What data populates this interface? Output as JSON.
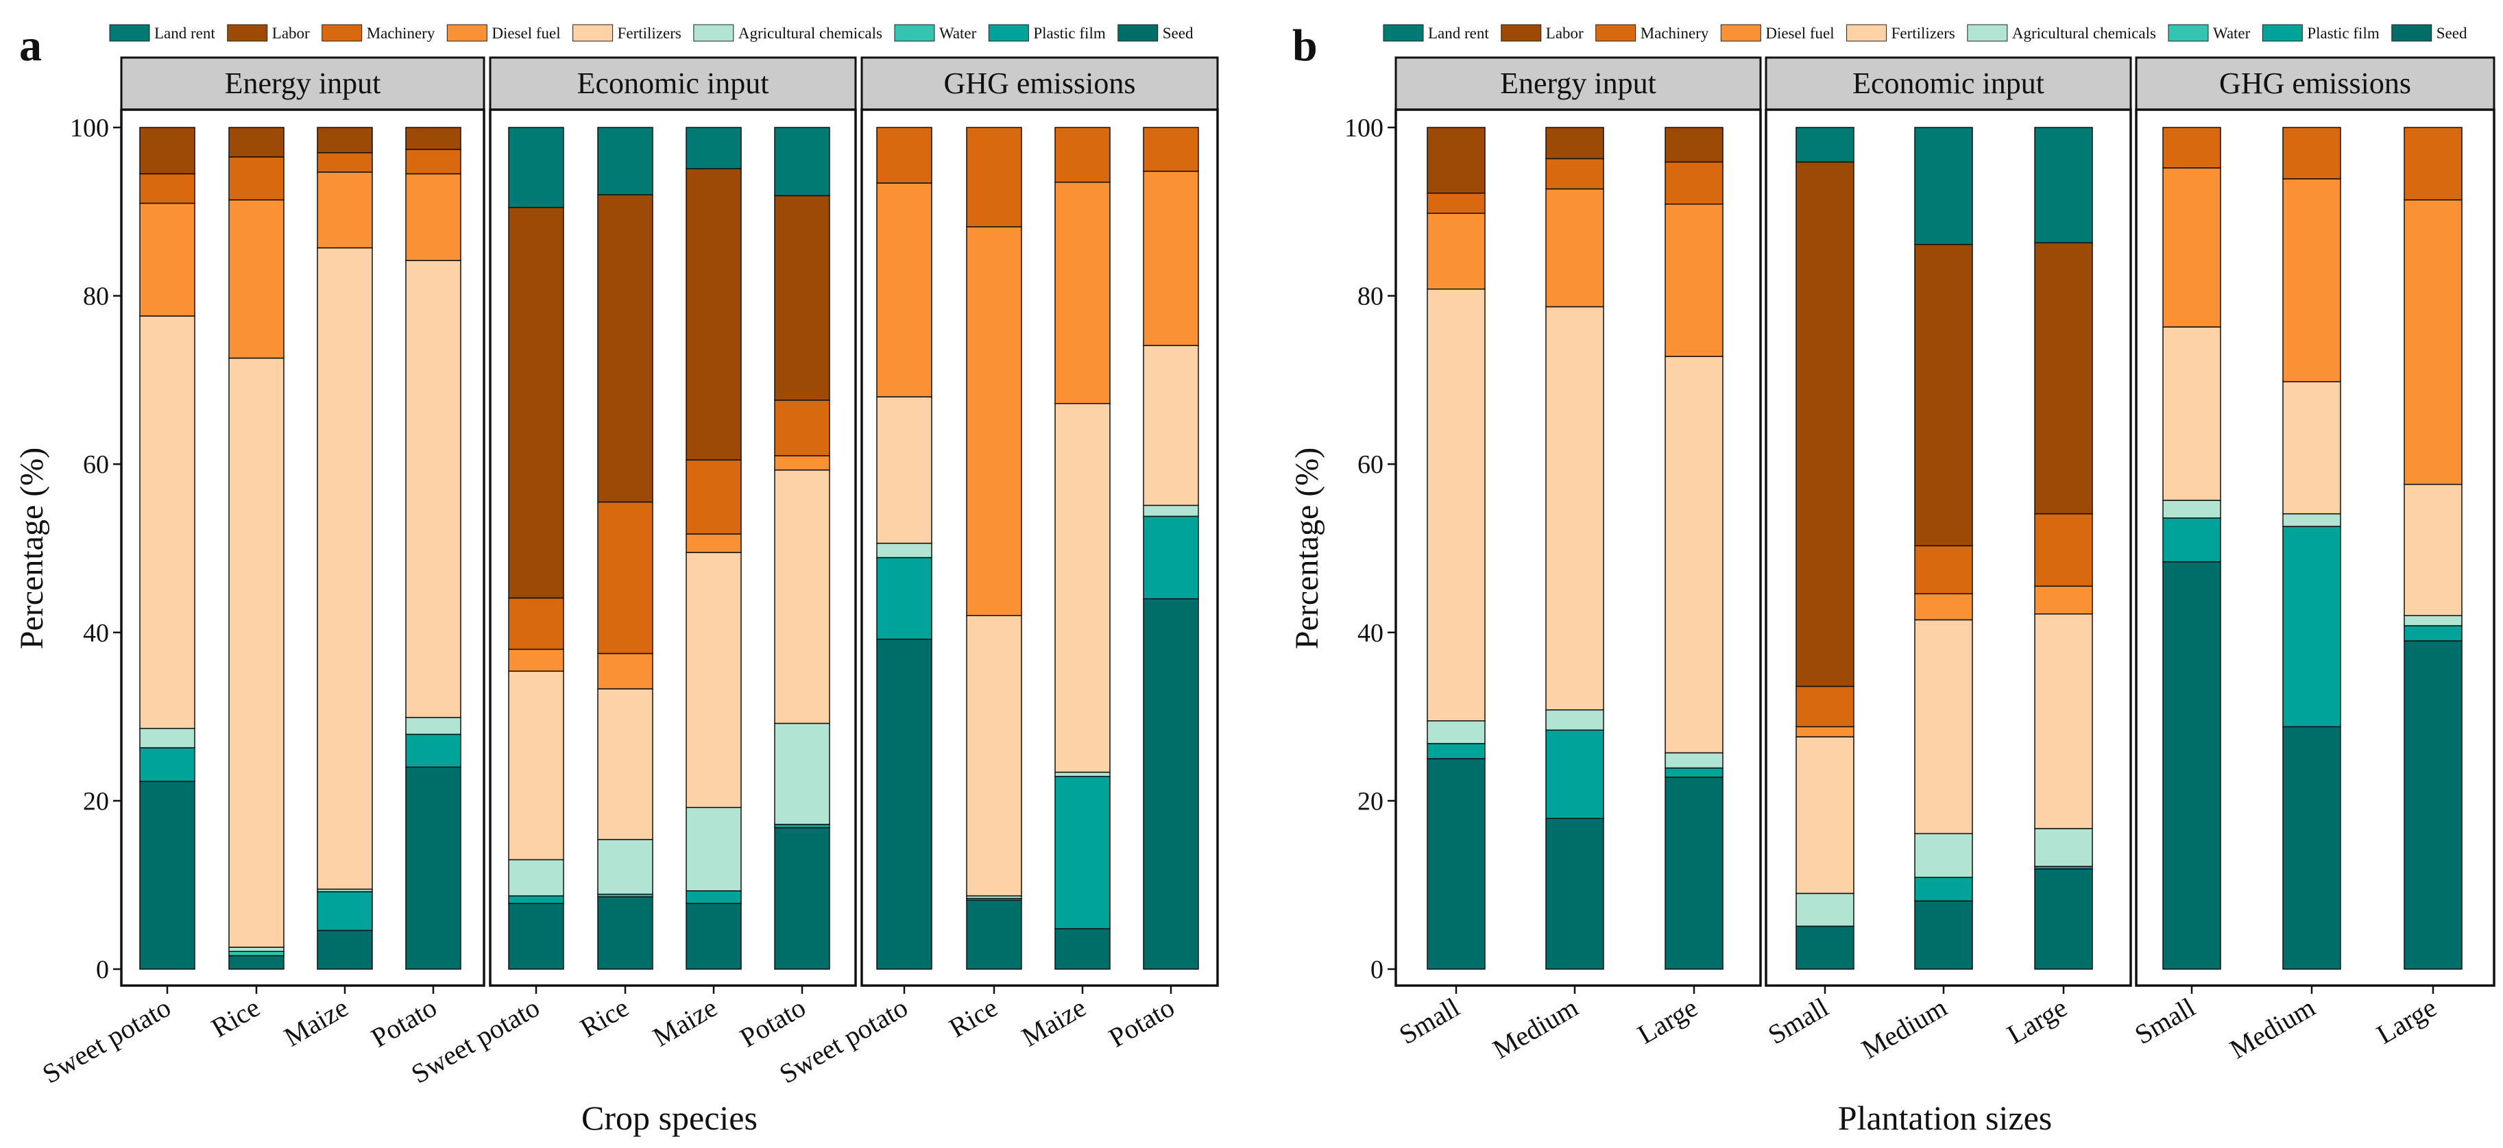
{
  "colors": {
    "Land rent": "#007a72",
    "Labor": "#9c4a05",
    "Machinery": "#d8690e",
    "Diesel fuel": "#fa9235",
    "Fertilizers": "#fdd2a6",
    "Agricultural chemicals": "#b2e4d4",
    "Water": "#35c4b2",
    "Plastic film": "#00a398",
    "Seed": "#006e68"
  },
  "chart_data": [
    {
      "panel": "a",
      "type": "bar",
      "stacked": true,
      "ylabel": "Percentage (%)",
      "xlabel": "Crop species",
      "ylim": [
        0,
        100
      ],
      "yticks": [
        "0",
        "20",
        "40",
        "60",
        "80",
        "100"
      ],
      "legend_labels": [
        "Land rent",
        "Labor",
        "Machinery",
        "Diesel fuel",
        "Fertilizers",
        "Agricultural chemicals",
        "Water",
        "Plastic film",
        "Seed"
      ],
      "facets": [
        {
          "title": "Energy input",
          "categories": [
            "Sweet potato",
            "Rice",
            "Maize",
            "Potato"
          ],
          "series": [
            {
              "name": "Seed",
              "values": [
                22.3,
                1.6,
                4.6,
                24.0
              ]
            },
            {
              "name": "Plastic film",
              "values": [
                4.0,
                0.0,
                4.6,
                3.9
              ]
            },
            {
              "name": "Water",
              "values": [
                0.0,
                0.5,
                0.0,
                0.0
              ]
            },
            {
              "name": "Agricultural chemicals",
              "values": [
                2.3,
                0.5,
                0.3,
                2.0
              ]
            },
            {
              "name": "Fertilizers",
              "values": [
                49.0,
                70.0,
                76.2,
                54.3
              ]
            },
            {
              "name": "Diesel fuel",
              "values": [
                13.4,
                18.8,
                9.0,
                10.3
              ]
            },
            {
              "name": "Machinery",
              "values": [
                3.5,
                5.1,
                2.3,
                2.9
              ]
            },
            {
              "name": "Labor",
              "values": [
                5.5,
                3.5,
                3.0,
                2.6
              ]
            },
            {
              "name": "Land rent",
              "values": [
                0.0,
                0.0,
                0.0,
                0.0
              ]
            }
          ]
        },
        {
          "title": "Economic input",
          "categories": [
            "Sweet potato",
            "Rice",
            "Maize",
            "Potato"
          ],
          "series": [
            {
              "name": "Seed",
              "values": [
                7.8,
                8.6,
                7.8,
                16.8
              ]
            },
            {
              "name": "Plastic film",
              "values": [
                0.9,
                0.0,
                1.5,
                0.4
              ]
            },
            {
              "name": "Water",
              "values": [
                0.0,
                0.3,
                0.0,
                0.0
              ]
            },
            {
              "name": "Agricultural chemicals",
              "values": [
                4.3,
                6.5,
                9.9,
                12.0
              ]
            },
            {
              "name": "Fertilizers",
              "values": [
                22.4,
                17.9,
                30.3,
                30.1
              ]
            },
            {
              "name": "Diesel fuel",
              "values": [
                2.6,
                4.2,
                2.2,
                1.7
              ]
            },
            {
              "name": "Machinery",
              "values": [
                6.1,
                18.0,
                8.8,
                6.6
              ]
            },
            {
              "name": "Labor",
              "values": [
                46.4,
                36.5,
                34.6,
                24.3
              ]
            },
            {
              "name": "Land rent",
              "values": [
                9.5,
                8.0,
                4.9,
                8.1
              ]
            }
          ]
        },
        {
          "title": "GHG emissions",
          "categories": [
            "Sweet potato",
            "Rice",
            "Maize",
            "Potato"
          ],
          "series": [
            {
              "name": "Seed",
              "values": [
                39.2,
                8.2,
                4.8,
                44.0
              ]
            },
            {
              "name": "Plastic film",
              "values": [
                9.7,
                0.0,
                18.1,
                9.8
              ]
            },
            {
              "name": "Water",
              "values": [
                0.0,
                0.2,
                0.0,
                0.0
              ]
            },
            {
              "name": "Agricultural chemicals",
              "values": [
                1.7,
                0.3,
                0.5,
                1.3
              ]
            },
            {
              "name": "Fertilizers",
              "values": [
                17.4,
                33.3,
                43.8,
                19.0
              ]
            },
            {
              "name": "Diesel fuel",
              "values": [
                25.4,
                46.2,
                26.3,
                20.7
              ]
            },
            {
              "name": "Machinery",
              "values": [
                6.6,
                11.8,
                6.5,
                5.2
              ]
            },
            {
              "name": "Labor",
              "values": [
                0.0,
                0.0,
                0.0,
                0.0
              ]
            },
            {
              "name": "Land rent",
              "values": [
                0.0,
                0.0,
                0.0,
                0.0
              ]
            }
          ]
        }
      ]
    },
    {
      "panel": "b",
      "type": "bar",
      "stacked": true,
      "ylabel": "Percentage (%)",
      "xlabel": "Plantation sizes",
      "ylim": [
        0,
        100
      ],
      "yticks": [
        "0",
        "20",
        "40",
        "60",
        "80",
        "100"
      ],
      "legend_labels": [
        "Land rent",
        "Labor",
        "Machinery",
        "Diesel fuel",
        "Fertilizers",
        "Agricultural chemicals",
        "Water",
        "Plastic film",
        "Seed"
      ],
      "facets": [
        {
          "title": "Energy input",
          "categories": [
            "Small",
            "Medium",
            "Large"
          ],
          "series": [
            {
              "name": "Seed",
              "values": [
                25.0,
                17.9,
                22.8
              ]
            },
            {
              "name": "Plastic film",
              "values": [
                1.8,
                10.5,
                1.1
              ]
            },
            {
              "name": "Water",
              "values": [
                0.0,
                0.0,
                0.0
              ]
            },
            {
              "name": "Agricultural chemicals",
              "values": [
                2.7,
                2.4,
                1.8
              ]
            },
            {
              "name": "Fertilizers",
              "values": [
                51.3,
                47.9,
                47.1
              ]
            },
            {
              "name": "Diesel fuel",
              "values": [
                9.0,
                14.0,
                18.1
              ]
            },
            {
              "name": "Machinery",
              "values": [
                2.4,
                3.6,
                5.0
              ]
            },
            {
              "name": "Labor",
              "values": [
                7.8,
                3.7,
                4.1
              ]
            },
            {
              "name": "Land rent",
              "values": [
                0.0,
                0.0,
                0.0
              ]
            }
          ]
        },
        {
          "title": "Economic input",
          "categories": [
            "Small",
            "Medium",
            "Large"
          ],
          "series": [
            {
              "name": "Seed",
              "values": [
                5.1,
                8.1,
                11.9
              ]
            },
            {
              "name": "Plastic film",
              "values": [
                0.0,
                2.8,
                0.3
              ]
            },
            {
              "name": "Water",
              "values": [
                0.0,
                0.0,
                0.0
              ]
            },
            {
              "name": "Agricultural chemicals",
              "values": [
                3.9,
                5.2,
                4.5
              ]
            },
            {
              "name": "Fertilizers",
              "values": [
                18.6,
                25.4,
                25.5
              ]
            },
            {
              "name": "Diesel fuel",
              "values": [
                1.2,
                3.1,
                3.3
              ]
            },
            {
              "name": "Machinery",
              "values": [
                4.8,
                5.7,
                8.6
              ]
            },
            {
              "name": "Labor",
              "values": [
                62.3,
                35.8,
                32.2
              ]
            },
            {
              "name": "Land rent",
              "values": [
                4.1,
                13.9,
                13.7
              ]
            }
          ]
        },
        {
          "title": "GHG emissions",
          "categories": [
            "Small",
            "Medium",
            "Large"
          ],
          "series": [
            {
              "name": "Seed",
              "values": [
                48.4,
                28.8,
                39.0
              ]
            },
            {
              "name": "Plastic film",
              "values": [
                5.2,
                23.8,
                1.8
              ]
            },
            {
              "name": "Water",
              "values": [
                0.0,
                0.0,
                0.0
              ]
            },
            {
              "name": "Agricultural chemicals",
              "values": [
                2.1,
                1.5,
                1.2
              ]
            },
            {
              "name": "Fertilizers",
              "values": [
                20.6,
                15.7,
                15.6
              ]
            },
            {
              "name": "Diesel fuel",
              "values": [
                18.9,
                24.1,
                33.8
              ]
            },
            {
              "name": "Machinery",
              "values": [
                4.8,
                6.1,
                8.6
              ]
            },
            {
              "name": "Labor",
              "values": [
                0.0,
                0.0,
                0.0
              ]
            },
            {
              "name": "Land rent",
              "values": [
                0.0,
                0.0,
                0.0
              ]
            }
          ]
        }
      ]
    }
  ]
}
